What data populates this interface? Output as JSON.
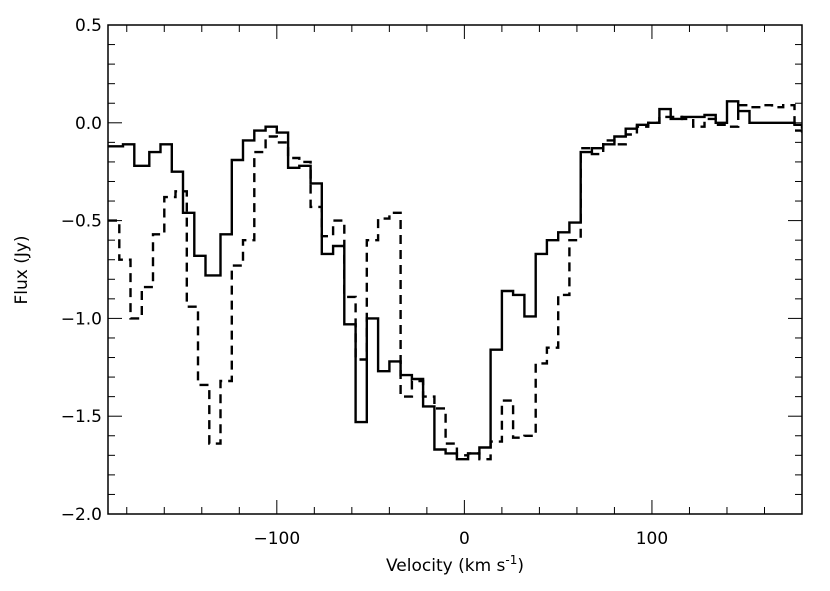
{
  "chart_data": {
    "type": "line",
    "title": "",
    "xlabel": "Velocity (km s",
    "xlabel_sup": "-1",
    "xlabel_end": ")",
    "ylabel": "Flux (Jy)",
    "xlim": [
      -190,
      180
    ],
    "ylim": [
      -2.0,
      0.5
    ],
    "x_ticks": [
      -100,
      0,
      100
    ],
    "x_tick_labels": [
      "−100",
      "0",
      "100"
    ],
    "y_ticks": [
      0.5,
      0.0,
      -0.5,
      -1.0,
      -1.5,
      -2.0
    ],
    "y_tick_labels": [
      "0.5",
      "0.0",
      "−0.5",
      "−1.0",
      "−1.5",
      "−2.0"
    ],
    "grid": false,
    "series": [
      {
        "style": "solid",
        "x": [
          -190,
          -182,
          -176,
          -168,
          -162,
          -156,
          -150,
          -144,
          -138,
          -130,
          -124,
          -118,
          -112,
          -106,
          -100,
          -94,
          -88,
          -82,
          -76,
          -70,
          -64,
          -58,
          -52,
          -46,
          -40,
          -34,
          -28,
          -22,
          -16,
          -10,
          -4,
          2,
          8,
          14,
          20,
          26,
          32,
          38,
          44,
          50,
          56,
          62,
          68,
          74,
          80,
          86,
          92,
          98,
          104,
          110,
          116,
          122,
          128,
          134,
          140,
          146,
          152,
          158,
          164,
          170,
          176,
          180
        ],
        "y": [
          -0.12,
          -0.11,
          -0.22,
          -0.15,
          -0.11,
          -0.25,
          -0.46,
          -0.68,
          -0.78,
          -0.57,
          -0.19,
          -0.09,
          -0.04,
          -0.02,
          -0.05,
          -0.23,
          -0.22,
          -0.31,
          -0.67,
          -0.63,
          -1.03,
          -1.53,
          -1.0,
          -1.27,
          -1.22,
          -1.29,
          -1.31,
          -1.45,
          -1.67,
          -1.69,
          -1.72,
          -1.69,
          -1.66,
          -1.16,
          -0.86,
          -0.88,
          -0.99,
          -0.67,
          -0.6,
          -0.56,
          -0.51,
          -0.15,
          -0.13,
          -0.11,
          -0.07,
          -0.03,
          -0.01,
          0.0,
          0.07,
          0.02,
          0.03,
          0.03,
          0.04,
          0.0,
          0.11,
          0.06,
          0.0,
          0.0,
          0.0,
          0.0,
          -0.01,
          -0.03
        ]
      },
      {
        "style": "dashed",
        "x": [
          -190,
          -184,
          -178,
          -172,
          -166,
          -160,
          -154,
          -148,
          -142,
          -136,
          -130,
          -124,
          -118,
          -112,
          -106,
          -100,
          -94,
          -88,
          -82,
          -76,
          -70,
          -64,
          -58,
          -52,
          -46,
          -40,
          -34,
          -28,
          -22,
          -16,
          -10,
          -4,
          2,
          8,
          14,
          20,
          26,
          32,
          38,
          44,
          50,
          56,
          62,
          68,
          74,
          80,
          86,
          92,
          98,
          104,
          110,
          116,
          122,
          128,
          134,
          140,
          146,
          152,
          158,
          164,
          170,
          176,
          180
        ],
        "y": [
          -0.5,
          -0.7,
          -1.0,
          -0.84,
          -0.57,
          -0.38,
          -0.35,
          -0.94,
          -1.34,
          -1.64,
          -1.32,
          -0.73,
          -0.6,
          -0.15,
          -0.07,
          -0.1,
          -0.18,
          -0.2,
          -0.43,
          -0.58,
          -0.5,
          -0.89,
          -1.21,
          -0.6,
          -0.49,
          -0.46,
          -1.4,
          -1.32,
          -1.4,
          -1.46,
          -1.64,
          -1.7,
          -1.69,
          -1.72,
          -1.63,
          -1.42,
          -1.61,
          -1.6,
          -1.23,
          -1.15,
          -0.88,
          -0.6,
          -0.13,
          -0.16,
          -0.09,
          -0.11,
          -0.06,
          -0.02,
          0.0,
          0.03,
          0.03,
          0.02,
          -0.02,
          0.02,
          -0.01,
          -0.02,
          0.09,
          0.08,
          0.09,
          0.08,
          0.09,
          -0.04,
          -0.06
        ]
      }
    ]
  }
}
